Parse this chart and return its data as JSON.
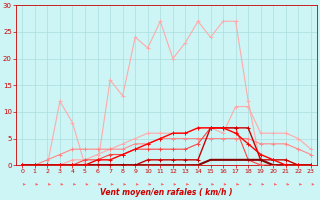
{
  "x": [
    0,
    1,
    2,
    3,
    4,
    5,
    6,
    7,
    8,
    9,
    10,
    11,
    12,
    13,
    14,
    15,
    16,
    17,
    18,
    19,
    20,
    21,
    22,
    23
  ],
  "series": [
    {
      "name": "light_pink_jagged",
      "color": "#ffaaaa",
      "linewidth": 0.8,
      "marker": "+",
      "markersize": 3,
      "y": [
        0,
        0,
        0,
        12,
        8,
        0,
        0,
        16,
        13,
        24,
        22,
        27,
        20,
        23,
        27,
        24,
        27,
        27,
        12,
        0,
        0,
        0,
        0,
        0
      ]
    },
    {
      "name": "medium_pink_smooth",
      "color": "#ffaaaa",
      "linewidth": 0.8,
      "marker": "+",
      "markersize": 3,
      "y": [
        0,
        0,
        0,
        0,
        1,
        1,
        2,
        3,
        4,
        5,
        6,
        6,
        6,
        6,
        7,
        7,
        6,
        11,
        11,
        6,
        6,
        6,
        5,
        3
      ]
    },
    {
      "name": "salmon_smooth",
      "color": "#ff8888",
      "linewidth": 0.8,
      "marker": "+",
      "markersize": 3,
      "y": [
        0,
        0,
        1,
        2,
        3,
        3,
        3,
        3,
        3,
        4,
        4,
        5,
        5,
        5,
        5,
        5,
        5,
        5,
        5,
        4,
        4,
        4,
        3,
        2
      ]
    },
    {
      "name": "red_medium",
      "color": "#ff4444",
      "linewidth": 0.8,
      "marker": "+",
      "markersize": 3,
      "y": [
        0,
        0,
        0,
        0,
        0,
        1,
        1,
        2,
        2,
        3,
        3,
        3,
        3,
        3,
        4,
        7,
        7,
        7,
        1,
        0,
        0,
        0,
        0,
        0
      ]
    },
    {
      "name": "dark_red_peak",
      "color": "#cc0000",
      "linewidth": 1.0,
      "marker": "+",
      "markersize": 3,
      "y": [
        0,
        0,
        0,
        0,
        0,
        0,
        0,
        0,
        0,
        0,
        1,
        1,
        1,
        1,
        1,
        7,
        7,
        7,
        7,
        1,
        1,
        1,
        0,
        0
      ]
    },
    {
      "name": "dark_red_flat",
      "color": "#880000",
      "linewidth": 1.5,
      "marker": null,
      "markersize": 0,
      "y": [
        0,
        0,
        0,
        0,
        0,
        0,
        0,
        0,
        0,
        0,
        0,
        0,
        0,
        0,
        0,
        1,
        1,
        1,
        1,
        1,
        0,
        0,
        0,
        0
      ]
    },
    {
      "name": "bright_red_arch",
      "color": "#ff0000",
      "linewidth": 1.0,
      "marker": "+",
      "markersize": 3,
      "y": [
        0,
        0,
        0,
        0,
        0,
        0,
        1,
        1,
        2,
        3,
        4,
        5,
        6,
        6,
        7,
        7,
        7,
        6,
        4,
        2,
        1,
        0,
        0,
        0
      ]
    }
  ],
  "xlabel": "Vent moyen/en rafales ( km/h )",
  "ylim": [
    0,
    30
  ],
  "xlim": [
    -0.5,
    23.5
  ],
  "yticks": [
    0,
    5,
    10,
    15,
    20,
    25,
    30
  ],
  "xticks": [
    0,
    1,
    2,
    3,
    4,
    5,
    6,
    7,
    8,
    9,
    10,
    11,
    12,
    13,
    14,
    15,
    16,
    17,
    18,
    19,
    20,
    21,
    22,
    23
  ],
  "bg_color": "#cef5f5",
  "grid_color": "#aadddd",
  "tick_color": "#cc0000",
  "label_color": "#cc0000",
  "arrow_color": "#ff6666",
  "spine_color": "#cc0000"
}
